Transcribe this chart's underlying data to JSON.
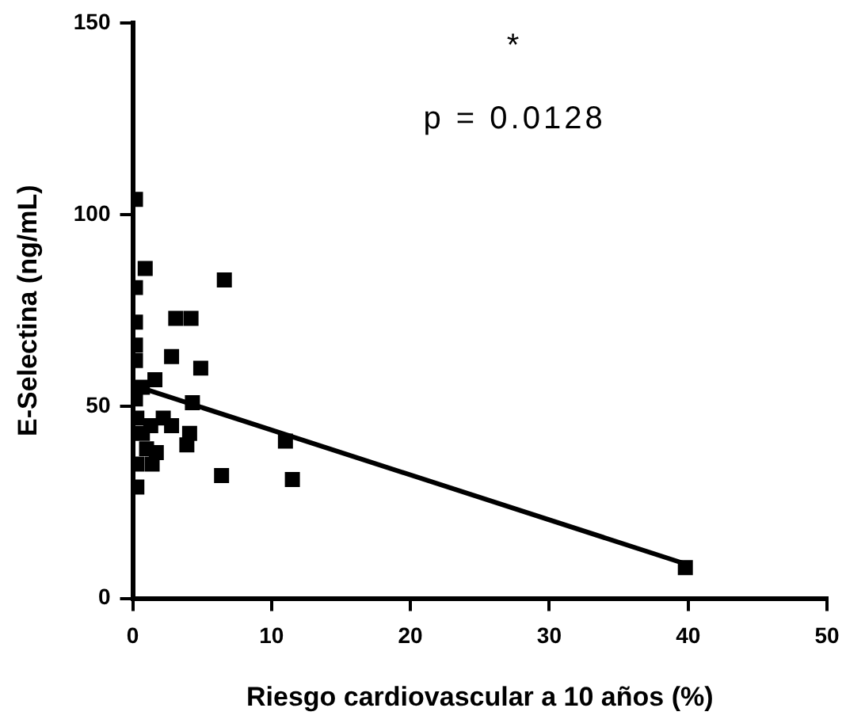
{
  "chart_data": {
    "type": "scatter",
    "xlabel": "Riesgo cardiovascular a 10 años (%)",
    "ylabel": "E-Selectina (ng/mL)",
    "xlim": [
      0,
      50
    ],
    "xticks": [
      0,
      10,
      20,
      30,
      40,
      50
    ],
    "ylim": [
      0,
      150
    ],
    "yticks": [
      0,
      50,
      100,
      150
    ],
    "grid": false,
    "legend": false,
    "marker": "square",
    "annotations": [
      "*",
      "p = 0.0128"
    ],
    "series": [
      {
        "color": "#000000",
        "x": [
          0.2,
          0.9,
          0.2,
          0.2,
          0.2,
          0.2,
          3.1,
          4.2,
          6.6,
          2.8,
          4.9,
          1.6,
          0.7,
          4.3,
          0.2,
          0.3,
          1.3,
          2.8,
          4.1,
          1.0,
          1.7,
          3.9,
          0.3,
          0.3,
          6.4,
          11.0,
          11.5,
          39.8,
          1.4,
          0.7,
          2.2
        ],
        "values": [
          104,
          86,
          81,
          72,
          66,
          62,
          73,
          73,
          83,
          63,
          60,
          57,
          55,
          51,
          52,
          47,
          45,
          45,
          43,
          39,
          38,
          40,
          35,
          29,
          32,
          41,
          31,
          8,
          35,
          43,
          47
        ]
      },
      {
        "type": "line",
        "color": "#000000",
        "marker": "none",
        "x": [
          0.5,
          39.8
        ],
        "values": [
          55,
          9
        ]
      }
    ]
  }
}
